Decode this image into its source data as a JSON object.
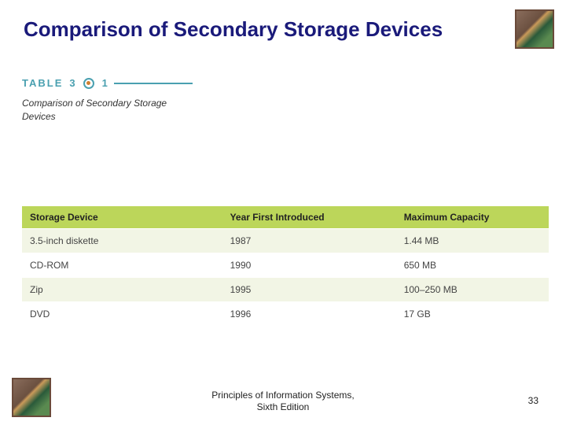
{
  "title": "Comparison of Secondary Storage Devices",
  "tableLabel": {
    "prefix": "TABLE",
    "numLeft": "3",
    "numRight": "1"
  },
  "tableCaption": "Comparison of Secondary Storage Devices",
  "table": {
    "type": "table",
    "columns": [
      "Storage Device",
      "Year First Introduced",
      "Maximum Capacity"
    ],
    "rows": [
      [
        "3.5-inch diskette",
        "1987",
        "1.44 MB"
      ],
      [
        "CD-ROM",
        "1990",
        "650 MB"
      ],
      [
        "Zip",
        "1995",
        "100–250 MB"
      ],
      [
        "DVD",
        "1996",
        "17 GB"
      ]
    ],
    "header_bg": "#bcd65a",
    "row_even_bg": "#f2f5e5",
    "row_odd_bg": "#ffffff",
    "header_fontsize": 12,
    "cell_fontsize": 12,
    "text_color": "#444444",
    "col_widths_pct": [
      38,
      33,
      29
    ]
  },
  "footer": {
    "line1": "Principles of Information Systems,",
    "line2": "Sixth Edition"
  },
  "pageNumber": "33",
  "colors": {
    "title_color": "#1a1a7a",
    "accent_teal": "#4aa0b0",
    "accent_orange": "#d08030",
    "background": "#ffffff"
  }
}
